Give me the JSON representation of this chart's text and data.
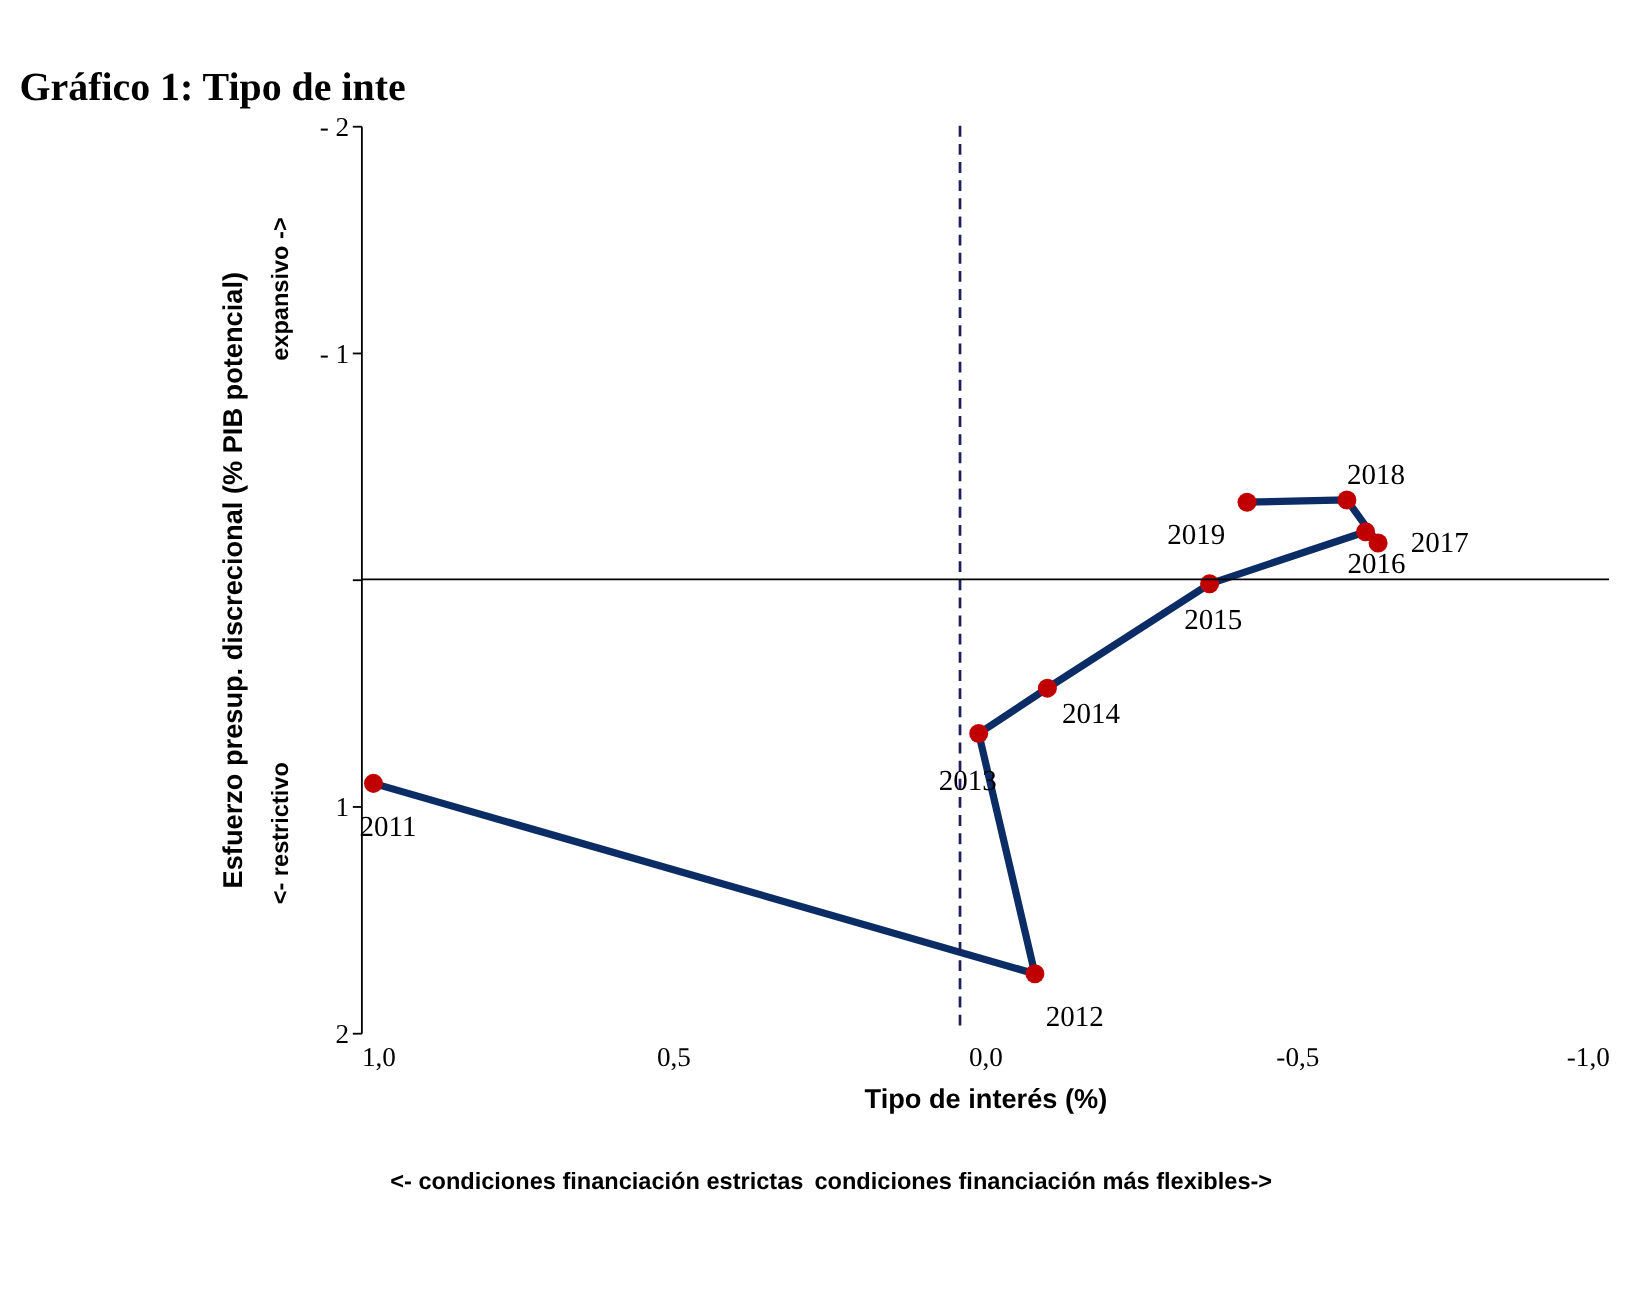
{
  "chart_data": {
    "type": "line",
    "title": "Gráfico 1: Tipo de inte",
    "xlabel": "Tipo de interés (%)",
    "ylabel": "Esfuerzo presup. discrecional (% PIB potencial)",
    "x": [
      0.98,
      -0.08,
      0.01,
      -0.1,
      -0.36,
      -0.61,
      -0.63,
      -0.58,
      -0.42
    ],
    "series": [
      {
        "color": "#0c2c66",
        "colors": [
          "#c00000",
          "#c00000",
          "#c00000",
          "#c00000",
          "#c00000",
          "#c00000",
          "#c00000",
          "#c00000",
          "#c00000"
        ],
        "values": [
          0.9,
          1.74,
          0.68,
          0.48,
          0.02,
          -0.21,
          -0.16,
          -0.35,
          -0.34
        ]
      }
    ],
    "marker": "circle",
    "line_style": "solid",
    "grid": false,
    "xlim": [
      1,
      -1
    ],
    "ylim": [
      2,
      -2
    ],
    "xticks": [
      {
        "value": 1,
        "label": "1,0"
      },
      {
        "value": 0.5,
        "label": "0,5"
      },
      {
        "value": 0,
        "label": "0,0"
      },
      {
        "value": -0.5,
        "label": "-0,5"
      },
      {
        "value": -1,
        "label": "-1,0"
      }
    ],
    "yticks": [
      {
        "value": -2,
        "label": "- 2"
      },
      {
        "value": -1,
        "label": "- 1"
      },
      {
        "value": 0,
        "label": null
      },
      1,
      2
    ],
    "ref_lines": [
      {
        "axis": "x",
        "value": 0.04,
        "color": "#1f1f5f",
        "line_style": "dashed"
      },
      {
        "axis": "y",
        "value": 0,
        "color": "#000000",
        "line_style": "solid"
      }
    ],
    "annotations": [
      {
        "text": "2011",
        "x": 0.98,
        "y": 0.9
      },
      {
        "text": "2012",
        "x": -0.08,
        "y": 1.74
      },
      {
        "text": "2013",
        "x": 0.01,
        "y": 0.68
      },
      {
        "text": "2014",
        "x": -0.1,
        "y": 0.48
      },
      {
        "text": "2015",
        "x": -0.36,
        "y": 0.02
      },
      {
        "text": "2016",
        "x": -0.61,
        "y": -0.21
      },
      {
        "text": "2017",
        "x": -0.63,
        "y": -0.16
      },
      {
        "text": "2018",
        "x": -0.58,
        "y": -0.35
      },
      {
        "text": "2019",
        "x": -0.42,
        "y": -0.34
      },
      "expansivo ->",
      "<- restrictivo",
      "<- condiciones  financiación estrictas",
      "condiciones financiación más flexibles->"
    ]
  }
}
